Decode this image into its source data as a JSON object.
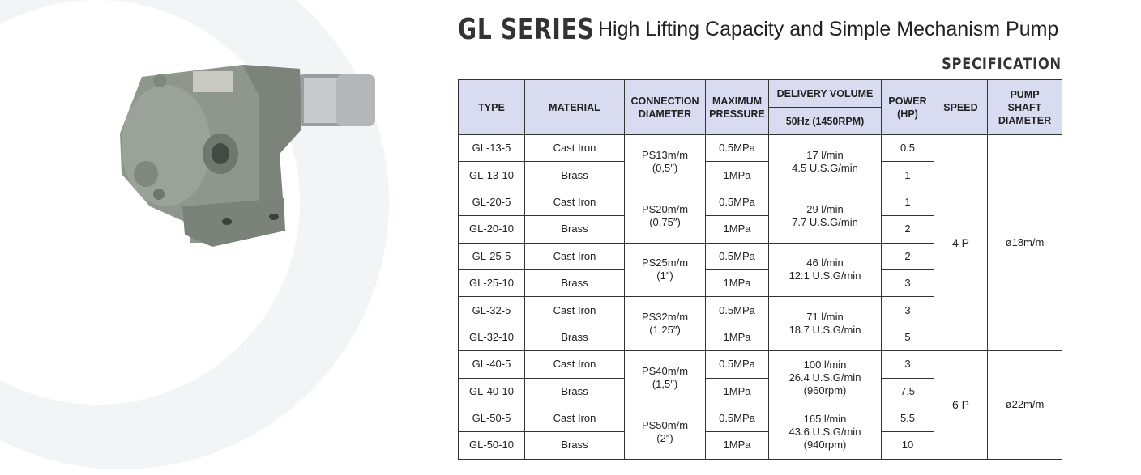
{
  "header": {
    "series": "GL SERIES",
    "subtitle": "High Lifting Capacity and Simple Mechanism Pump",
    "section": "SPECIFICATION"
  },
  "table": {
    "headers": [
      [
        "TYPE"
      ],
      [
        "MATERIAL"
      ],
      [
        "CONNECTION",
        "DIAMETER"
      ],
      [
        "MAXIMUM",
        "PRESSURE"
      ],
      [
        "DELIVERY VOLUME"
      ],
      [
        "POWER",
        "(HP)"
      ],
      [
        "SPEED"
      ],
      [
        "PUMP",
        "SHAFT",
        "DIAMETER"
      ]
    ],
    "subheader": "50Hz (1450RPM)",
    "rows": [
      [
        "GL-13-5",
        "Cast Iron",
        "0.5MPa",
        "0.5"
      ],
      [
        "GL-13-10",
        "Brass",
        "1MPa",
        "1"
      ],
      [
        "GL-20-5",
        "Cast Iron",
        "0.5MPa",
        "1"
      ],
      [
        "GL-20-10",
        "Brass",
        "1MPa",
        "2"
      ],
      [
        "GL-25-5",
        "Cast Iron",
        "0.5MPa",
        "2"
      ],
      [
        "GL-25-10",
        "Brass",
        "1MPa",
        "3"
      ],
      [
        "GL-32-5",
        "Cast Iron",
        "0.5MPa",
        "3"
      ],
      [
        "GL-32-10",
        "Brass",
        "1MPa",
        "5"
      ],
      [
        "GL-40-5",
        "Cast Iron",
        "0.5MPa",
        "3"
      ],
      [
        "GL-40-10",
        "Brass",
        "1MPa",
        "7.5"
      ],
      [
        "GL-50-5",
        "Cast Iron",
        "0.5MPa",
        "5.5"
      ],
      [
        "GL-50-10",
        "Brass",
        "1MPa",
        "10"
      ]
    ],
    "connection": [
      [
        "PS13m/m",
        "(0,5″)"
      ],
      [
        "PS20m/m",
        "(0,75″)"
      ],
      [
        "PS25m/m",
        "(1″)"
      ],
      [
        "PS32m/m",
        "(1,25″)"
      ],
      [
        "PS40m/m",
        "(1,5″)"
      ],
      [
        "PS50m/m",
        "(2″)"
      ]
    ],
    "delivery": [
      [
        "17 l/min",
        "4.5 U.S.G/min"
      ],
      [
        "29 l/min",
        "7.7 U.S.G/min"
      ],
      [
        "46 l/min",
        "12.1 U.S.G/min"
      ],
      [
        "71 l/min",
        "18.7 U.S.G/min"
      ],
      [
        "100 l/min",
        "26.4 U.S.G/min",
        "(960rpm)"
      ],
      [
        "165 l/min",
        "43.6 U.S.G/min",
        "(940rpm)"
      ]
    ],
    "speed": [
      [
        "4 P",
        "ø18m/m"
      ],
      [
        "6 P",
        "ø22m/m"
      ]
    ]
  }
}
